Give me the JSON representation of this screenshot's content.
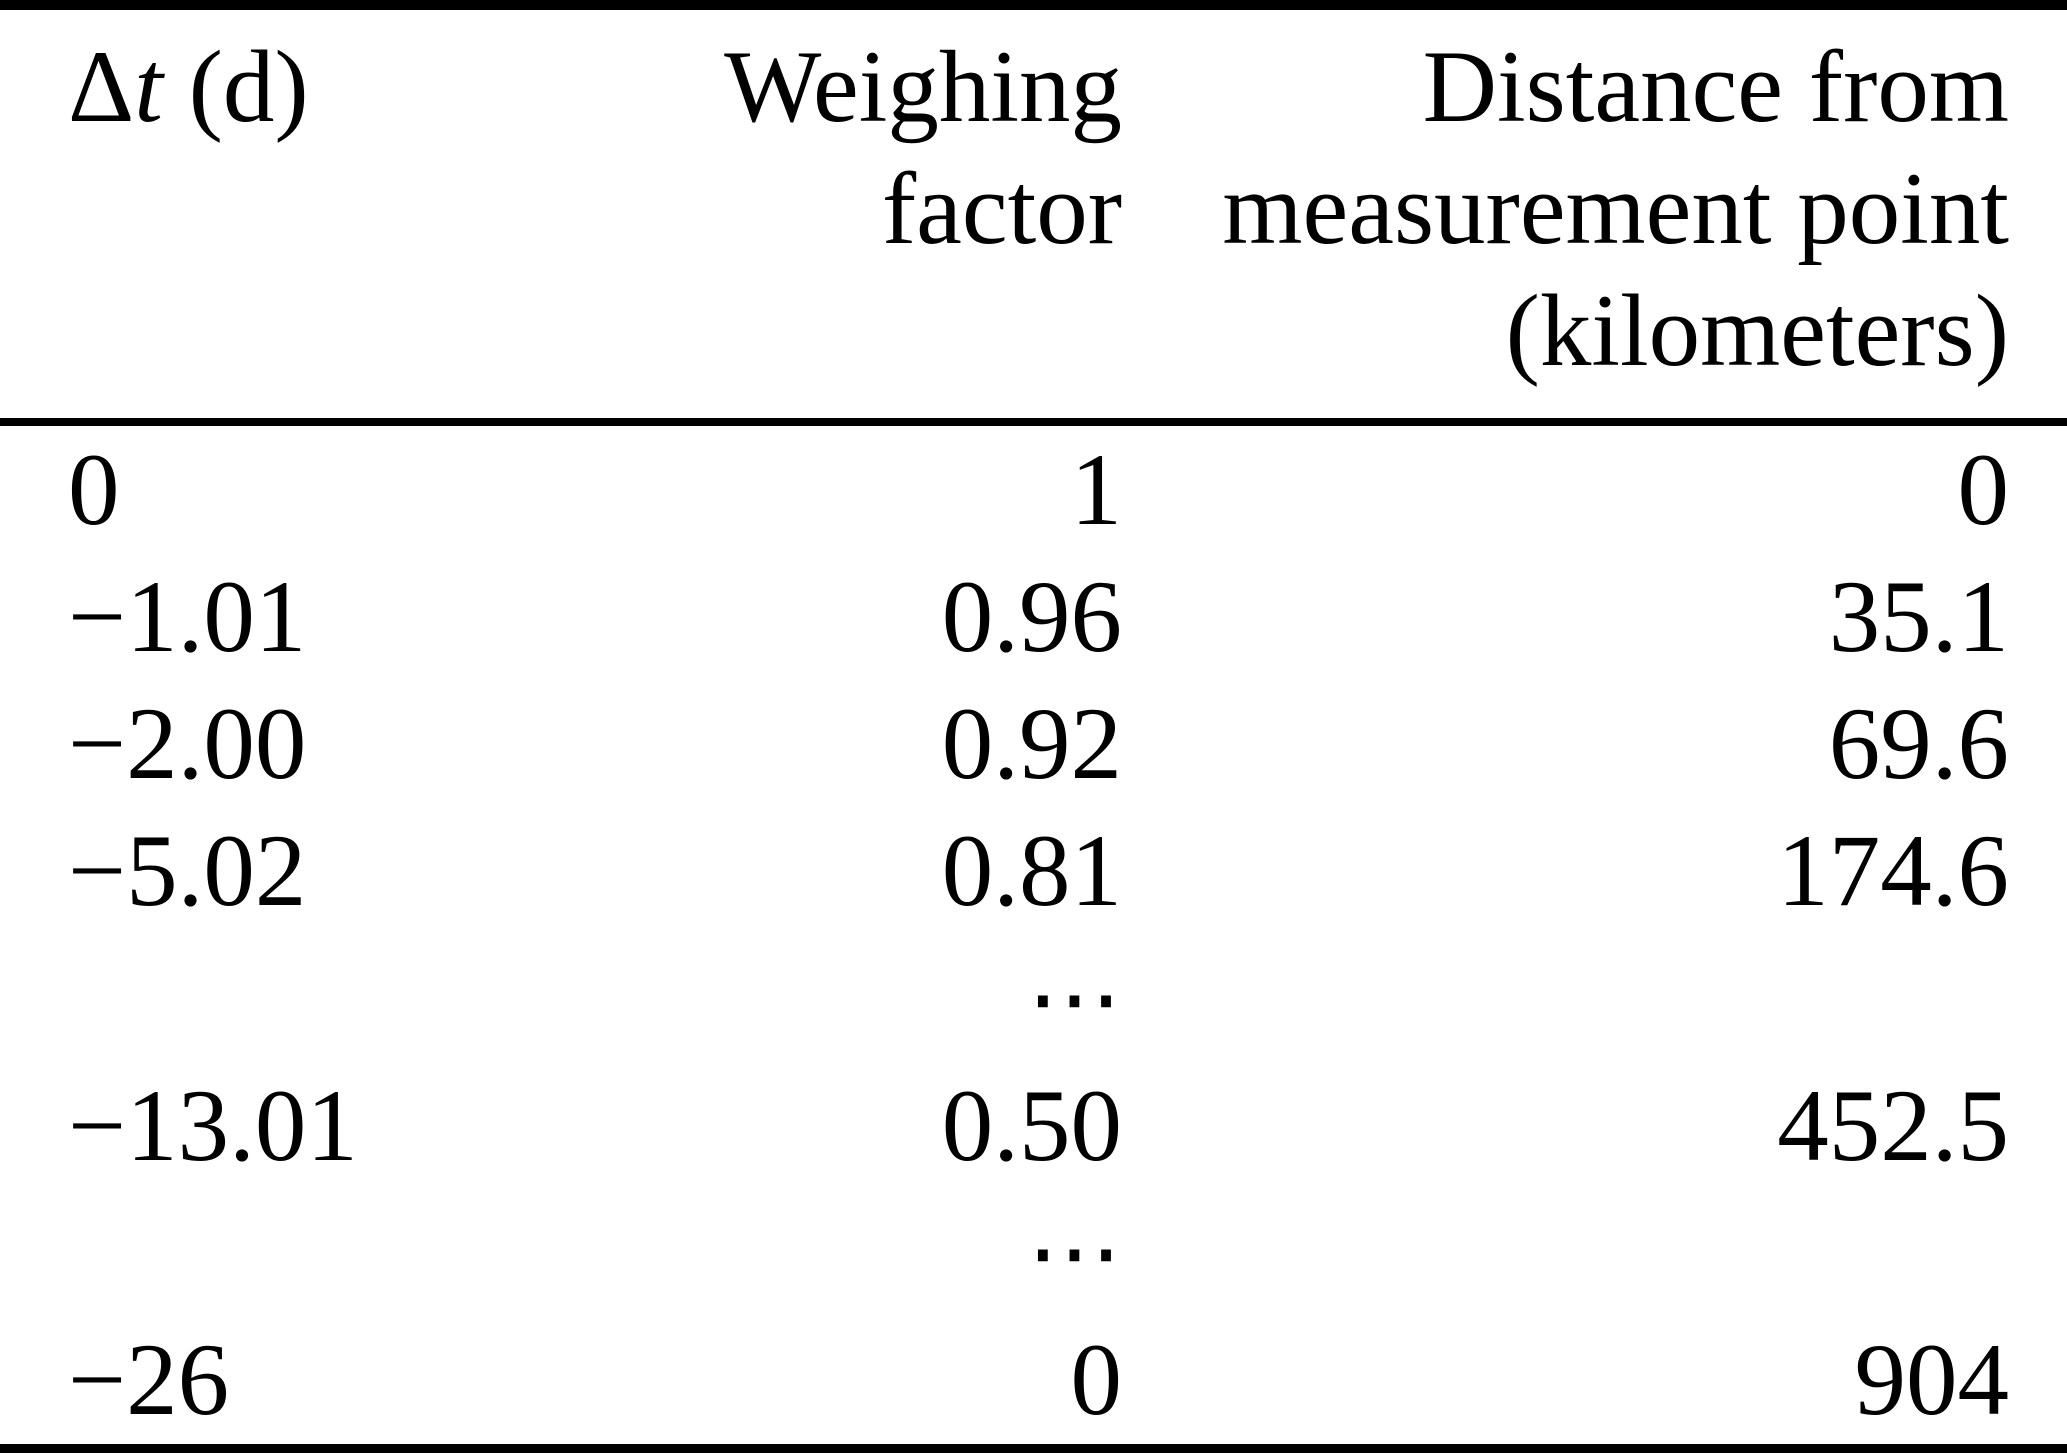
{
  "figure": {
    "type": "table",
    "colors": {
      "text": "#000000",
      "background": "#ffffff",
      "rule": "#000000"
    },
    "header": {
      "dt": {
        "symbol": "Δ",
        "variable": "t",
        "unit": " (d)"
      },
      "weighing_factor": "Weighing factor",
      "distance_lines": [
        "Distance from",
        "measurement point",
        "(kilometers)"
      ]
    },
    "ellipsis": "⋯",
    "rows": [
      {
        "dt": "0",
        "weighing_factor": "1",
        "distance_km": "0"
      },
      {
        "dt": "−1.01",
        "weighing_factor": "0.96",
        "distance_km": "35.1"
      },
      {
        "dt": "−2.00",
        "weighing_factor": "0.92",
        "distance_km": "69.6"
      },
      {
        "dt": "−5.02",
        "weighing_factor": "0.81",
        "distance_km": "174.6"
      },
      {
        "dt": "",
        "weighing_factor": "⋯",
        "distance_km": ""
      },
      {
        "dt": "−13.01",
        "weighing_factor": "0.50",
        "distance_km": "452.5"
      },
      {
        "dt": "",
        "weighing_factor": "⋯",
        "distance_km": ""
      },
      {
        "dt": "−26",
        "weighing_factor": "0",
        "distance_km": "904"
      }
    ]
  }
}
